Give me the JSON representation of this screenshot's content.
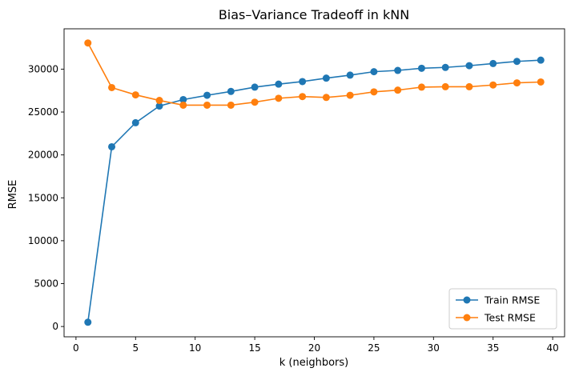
{
  "chart_data": {
    "type": "line",
    "title": "Bias–Variance Tradeoff in kNN",
    "xlabel": "k (neighbors)",
    "ylabel": "RMSE",
    "xlim": [
      -1,
      41
    ],
    "ylim": [
      -1200,
      34700
    ],
    "xticks": [
      0,
      5,
      10,
      15,
      20,
      25,
      30,
      35,
      40
    ],
    "yticks": [
      0,
      5000,
      10000,
      15000,
      20000,
      25000,
      30000
    ],
    "x": [
      1,
      3,
      5,
      7,
      9,
      11,
      13,
      15,
      17,
      19,
      21,
      23,
      25,
      27,
      29,
      31,
      33,
      35,
      37,
      39
    ],
    "series": [
      {
        "name": "Train RMSE",
        "color": "#1f77b4",
        "marker": "circle",
        "values": [
          500,
          20950,
          23750,
          25700,
          26450,
          26950,
          27400,
          27900,
          28250,
          28550,
          28950,
          29300,
          29700,
          29850,
          30100,
          30200,
          30400,
          30650,
          30900,
          31050
        ]
      },
      {
        "name": "Test RMSE",
        "color": "#ff7f0e",
        "marker": "circle",
        "values": [
          33050,
          27850,
          27000,
          26350,
          25800,
          25800,
          25800,
          26150,
          26600,
          26800,
          26700,
          26950,
          27350,
          27550,
          27900,
          27950,
          27950,
          28150,
          28400,
          28500
        ]
      }
    ],
    "grid": false,
    "legend_position": "lower-right"
  }
}
